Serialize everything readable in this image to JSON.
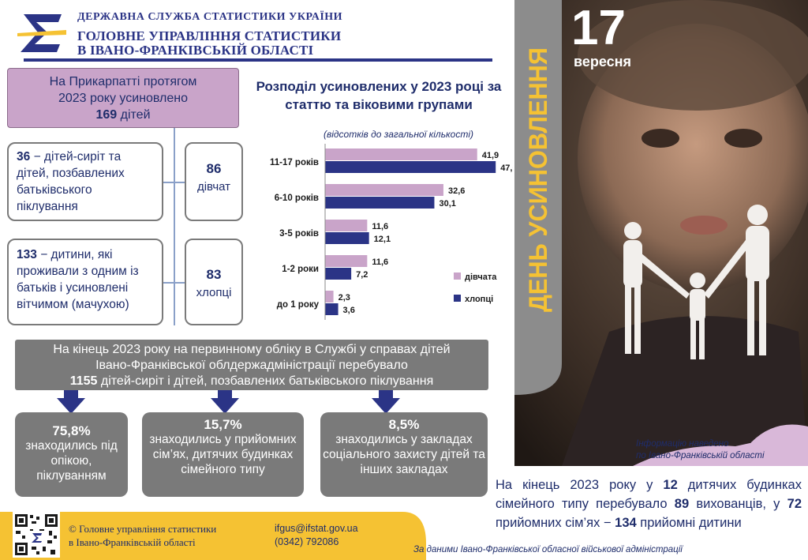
{
  "header": {
    "org_line1": "ДЕРЖАВНА СЛУЖБА СТАТИСТИКИ УКРАЇНИ",
    "org_line2": "ГОЛОВНЕ УПРАВЛІННЯ СТАТИСТИКИ",
    "org_line3": "В ІВАНО-ФРАНКІВСЬКІЙ ОБЛАСТІ"
  },
  "summary": {
    "line1": "На Прикарпатті протягом",
    "line2": "2023 року усиновлено",
    "count": "169",
    "unit": "дітей"
  },
  "orphans": {
    "count": "36",
    "text": "− дітей-сиріт та дітей, позбавлених батьківського піклування"
  },
  "stepparents": {
    "count": "133",
    "text": "− дитини,  які проживали з одним із батьків і усиновлені вітчимом (мачухою)"
  },
  "girls": {
    "count": "86",
    "label": "дівчат"
  },
  "boys": {
    "count": "83",
    "label": "хлопці"
  },
  "chart_data": {
    "type": "bar",
    "title": "Розподіл усиновлених у 2023 році за статтю та віковими групами",
    "subtitle": "(відсотків до загальної кількості)",
    "categories": [
      "11-17  років",
      "6-10 років",
      "3-5 років",
      "1-2 роки",
      "до 1 року"
    ],
    "series": [
      {
        "name": "дівчата",
        "color": "#c9a4c9",
        "values": [
          41.9,
          32.6,
          11.6,
          11.6,
          2.3
        ],
        "labels": [
          "41,9",
          "32,6",
          "11,6",
          "11,6",
          "2,3"
        ]
      },
      {
        "name": "хлопці",
        "color": "#2b3486",
        "values": [
          47.0,
          30.1,
          12.1,
          7.2,
          3.6
        ],
        "labels": [
          "47,0",
          "30,1",
          "12,1",
          "7,2",
          "3,6"
        ]
      }
    ],
    "xlim": [
      0,
      50
    ],
    "legend": "right"
  },
  "banner": {
    "line1": "На кінець 2023 року на первинному обліку в Службі у справах дітей",
    "line2": "Івано-Франківської облдержадміністрації перебувало",
    "count": "1155",
    "line3": "дітей-сиріт і дітей, позбавлених батьківського піклування"
  },
  "boxes": [
    {
      "pct": "75,8%",
      "text": "знаходились під опікою, піклуванням"
    },
    {
      "pct": "15,7%",
      "text": "знаходились у прийомних сім’ях, дитячих будинках сімейного типу"
    },
    {
      "pct": "8,5%",
      "text": "знаходились у закладах соціального захисту дітей та інших закладах"
    }
  ],
  "day": {
    "title": "ДЕНЬ УСИНОВЛЕННЯ",
    "number": "17",
    "month": "вересня"
  },
  "info_note": {
    "line1": "Інформацію наведено",
    "line2": "по Івано-Франківській  області"
  },
  "foster": {
    "p1": "На кінець 2023 року у",
    "n1": "12",
    "p2": "дитячих будинках сімейного типу перебувало",
    "n2": "89",
    "p3": "вихованців, у",
    "n3": "72",
    "p4": "прийомних сім’ях −",
    "n4": "134",
    "p5": "прийомні дитини"
  },
  "footer": {
    "copy_line1": "© Головне управління статистики",
    "copy_line2": "в Івано-Франківській області",
    "email": "ifgus@ifstat.gov.ua",
    "phone": "(0342) 792086",
    "source": "За даними  Івано-Франківської  обласної військової адміністрації"
  },
  "colors": {
    "navy": "#2b3486",
    "pink": "#c9a4c9",
    "gray": "#7a7a7a",
    "yellow": "#f5c233"
  }
}
